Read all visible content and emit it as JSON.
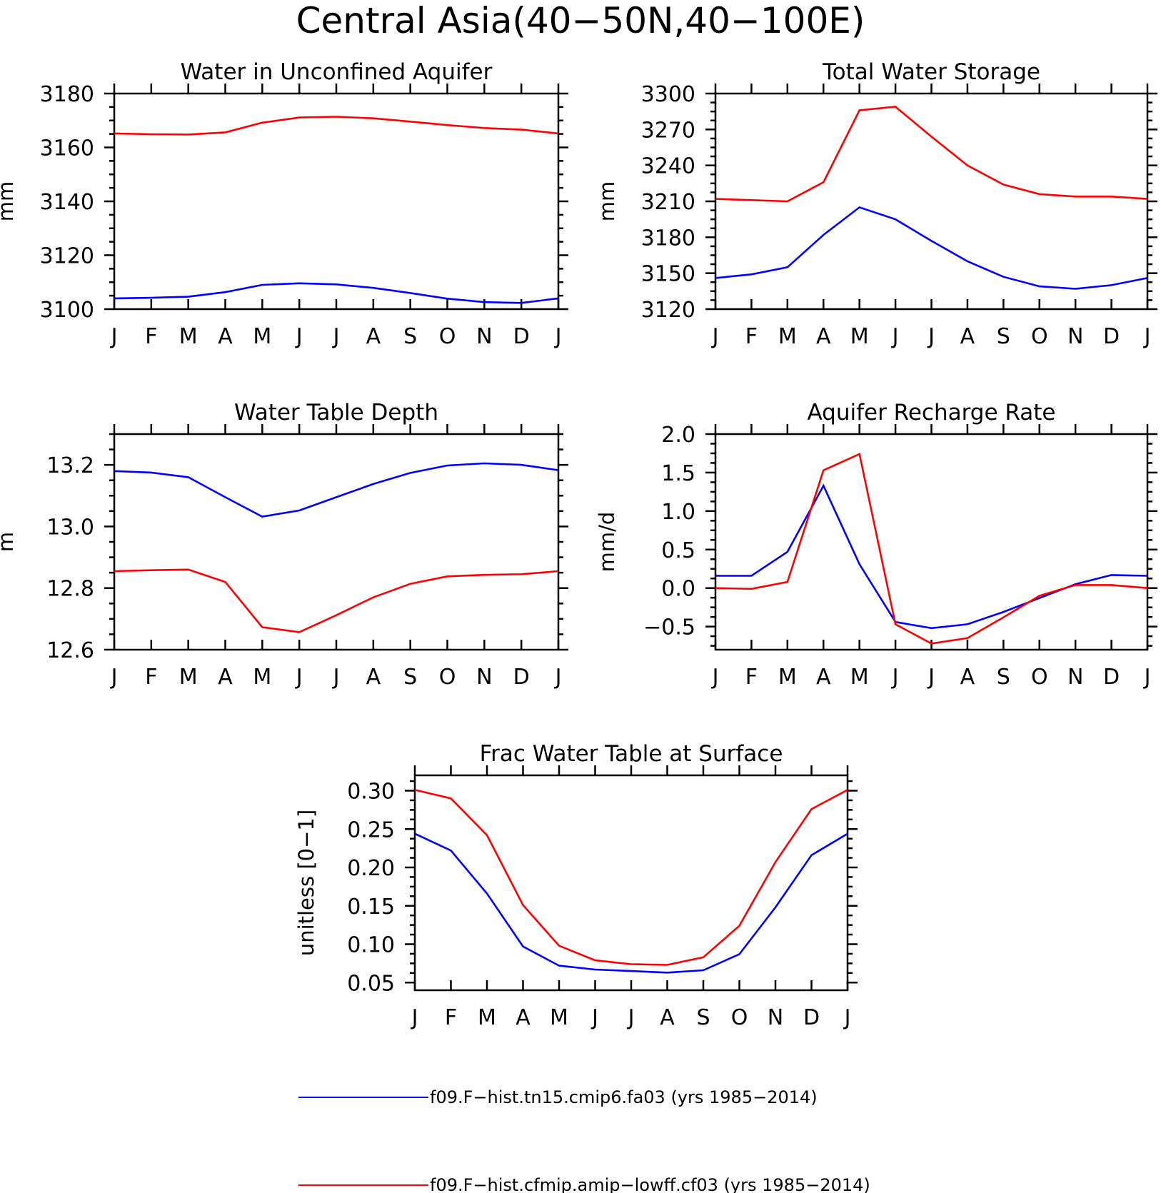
{
  "figure": {
    "title": "Central Asia(40−50N,40−100E)"
  },
  "legend": [
    {
      "label": "f09.F−hist.tn15.cmip6.fa03 (yrs 1985−2014)",
      "color": "#0000ff"
    },
    {
      "label": "f09.F−hist.cfmip.amip−lowff.cf03 (yrs 1985−2014)",
      "color": "#ff0000"
    }
  ],
  "chart_data": [
    {
      "type": "line",
      "title": "Water in Unconfined Aquifer",
      "ylabel": "mm",
      "xlabel": "",
      "categories": [
        "J",
        "F",
        "M",
        "A",
        "M",
        "J",
        "J",
        "A",
        "S",
        "O",
        "N",
        "D",
        "J"
      ],
      "ylim": [
        3100,
        3180
      ],
      "yticks": [
        3100,
        3120,
        3140,
        3160,
        3180
      ],
      "ytick_labels": [
        "3100",
        "3120",
        "3140",
        "3160",
        "3180"
      ],
      "grid": false,
      "series": [
        {
          "color": "#0000ff",
          "values": [
            3104,
            3104.2,
            3104.6,
            3106.3,
            3109,
            3109.6,
            3109.2,
            3107.9,
            3106,
            3103.9,
            3102.6,
            3102.3,
            3104
          ]
        },
        {
          "color": "#ff0000",
          "values": [
            3165.2,
            3164.9,
            3164.8,
            3165.6,
            3169.2,
            3171.1,
            3171.4,
            3170.8,
            3169.6,
            3168.3,
            3167.2,
            3166.6,
            3165.2
          ]
        }
      ]
    },
    {
      "type": "line",
      "title": "Total Water Storage",
      "ylabel": "mm",
      "xlabel": "",
      "categories": [
        "J",
        "F",
        "M",
        "A",
        "M",
        "J",
        "J",
        "A",
        "S",
        "O",
        "N",
        "D",
        "J"
      ],
      "ylim": [
        3120,
        3300
      ],
      "yticks": [
        3120,
        3150,
        3180,
        3210,
        3240,
        3270,
        3300
      ],
      "ytick_labels": [
        "3120",
        "3150",
        "3180",
        "3210",
        "3240",
        "3270",
        "3300"
      ],
      "grid": false,
      "series": [
        {
          "color": "#0000ff",
          "values": [
            3146,
            3149,
            3155,
            3182,
            3205,
            3195,
            3177,
            3160,
            3147,
            3139,
            3137,
            3140,
            3146
          ]
        },
        {
          "color": "#ff0000",
          "values": [
            3212,
            3211,
            3210,
            3226,
            3286,
            3289,
            3264,
            3240,
            3224,
            3216,
            3214,
            3214,
            3212
          ]
        }
      ]
    },
    {
      "type": "line",
      "title": "Water Table Depth",
      "ylabel": "m",
      "xlabel": "",
      "categories": [
        "J",
        "F",
        "M",
        "A",
        "M",
        "J",
        "J",
        "A",
        "S",
        "O",
        "N",
        "D",
        "J"
      ],
      "ylim": [
        12.6,
        13.3
      ],
      "yticks": [
        12.6,
        12.8,
        13.0,
        13.2
      ],
      "ytick_labels": [
        "12.6",
        "12.8",
        "13.0",
        "13.2"
      ],
      "grid": false,
      "series": [
        {
          "color": "#0000ff",
          "values": [
            13.18,
            13.175,
            13.16,
            13.095,
            13.032,
            13.052,
            13.095,
            13.138,
            13.174,
            13.198,
            13.205,
            13.2,
            13.183
          ]
        },
        {
          "color": "#ff0000",
          "values": [
            12.855,
            12.858,
            12.86,
            12.82,
            12.673,
            12.657,
            12.712,
            12.77,
            12.814,
            12.838,
            12.843,
            12.845,
            12.855
          ]
        }
      ]
    },
    {
      "type": "line",
      "title": "Aquifer Recharge Rate",
      "ylabel": "mm/d",
      "xlabel": "",
      "categories": [
        "J",
        "F",
        "M",
        "A",
        "M",
        "J",
        "J",
        "A",
        "S",
        "O",
        "N",
        "D",
        "J"
      ],
      "ylim": [
        -0.8,
        2.0
      ],
      "yticks": [
        -0.5,
        0.0,
        0.5,
        1.0,
        1.5,
        2.0
      ],
      "ytick_labels": [
        "−0.5",
        "0.0",
        "0.5",
        "1.0",
        "1.5",
        "2.0"
      ],
      "grid": false,
      "series": [
        {
          "color": "#0000ff",
          "values": [
            0.16,
            0.16,
            0.47,
            1.33,
            0.31,
            -0.44,
            -0.52,
            -0.47,
            -0.31,
            -0.13,
            0.05,
            0.17,
            0.16
          ]
        },
        {
          "color": "#ff0000",
          "values": [
            0.0,
            -0.01,
            0.08,
            1.53,
            1.74,
            -0.47,
            -0.72,
            -0.65,
            -0.38,
            -0.1,
            0.04,
            0.04,
            0.0
          ]
        }
      ]
    },
    {
      "type": "line",
      "title": "Frac Water Table at Surface",
      "ylabel": "unitless [0−1]",
      "xlabel": "",
      "categories": [
        "J",
        "F",
        "M",
        "A",
        "M",
        "J",
        "J",
        "A",
        "S",
        "O",
        "N",
        "D",
        "J"
      ],
      "ylim": [
        0.04,
        0.32
      ],
      "yticks": [
        0.05,
        0.1,
        0.15,
        0.2,
        0.25,
        0.3
      ],
      "ytick_labels": [
        "0.05",
        "0.10",
        "0.15",
        "0.20",
        "0.25",
        "0.30"
      ],
      "grid": false,
      "series": [
        {
          "color": "#0000ff",
          "values": [
            0.244,
            0.222,
            0.166,
            0.097,
            0.072,
            0.067,
            0.065,
            0.063,
            0.066,
            0.087,
            0.148,
            0.216,
            0.244
          ]
        },
        {
          "color": "#ff0000",
          "values": [
            0.301,
            0.29,
            0.242,
            0.151,
            0.098,
            0.079,
            0.074,
            0.073,
            0.083,
            0.124,
            0.207,
            0.276,
            0.301
          ]
        }
      ]
    }
  ]
}
